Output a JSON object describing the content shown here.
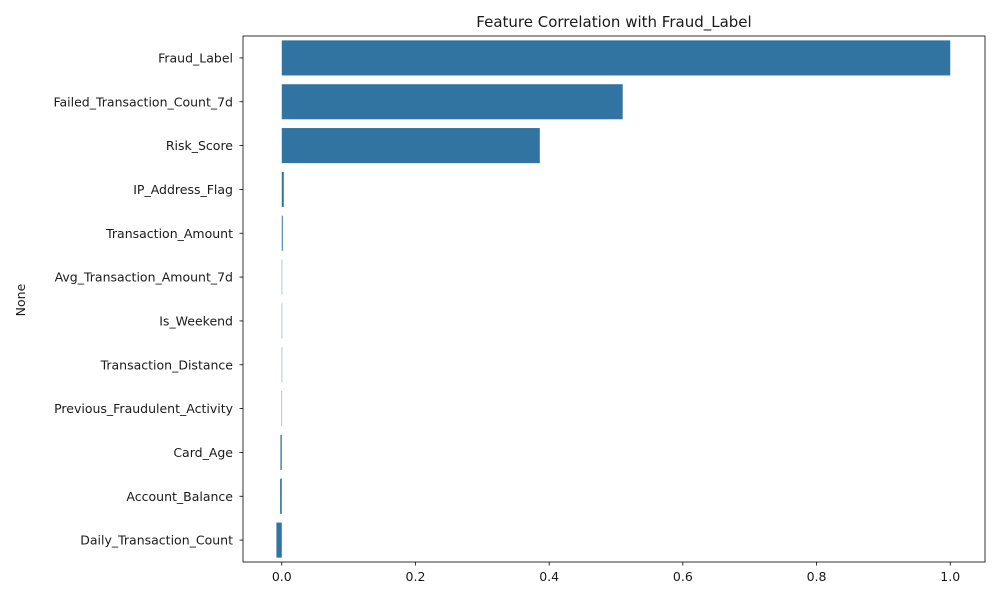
{
  "chart_data": {
    "type": "bar",
    "orientation": "horizontal",
    "title": "Feature Correlation with Fraud_Label",
    "xlabel": "",
    "ylabel": "None",
    "xlim": [
      -0.058,
      1.052
    ],
    "xticks": [
      0.0,
      0.2,
      0.4,
      0.6,
      0.8,
      1.0
    ],
    "xtick_labels": [
      "0.0",
      "0.2",
      "0.4",
      "0.6",
      "0.8",
      "1.0"
    ],
    "grid": false,
    "bar_color": "#3274a1",
    "categories": [
      "Fraud_Label",
      "Failed_Transaction_Count_7d",
      "Risk_Score",
      "IP_Address_Flag",
      "Transaction_Amount",
      "Avg_Transaction_Amount_7d",
      "Is_Weekend",
      "Transaction_Distance",
      "Previous_Fraudulent_Activity",
      "Card_Age",
      "Account_Balance",
      "Daily_Transaction_Count"
    ],
    "values": [
      1.0,
      0.51,
      0.386,
      0.003,
      0.0015,
      0.0003,
      0.0002,
      0.0001,
      -0.0002,
      -0.002,
      -0.0025,
      -0.008
    ]
  }
}
